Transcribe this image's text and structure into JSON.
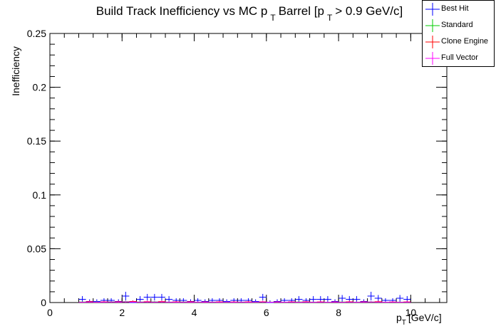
{
  "chart_data": {
    "type": "scatter",
    "title_parts": [
      "Build Track Inefficiency vs MC p",
      "T",
      "Barrel [p",
      "T",
      "> 0.9 GeV/c]"
    ],
    "xlabel_main": "p",
    "xlabel_sub": "T",
    "xlabel_unit": "[GeV/c]",
    "ylabel": "Inefficiency",
    "xlim": [
      0,
      11
    ],
    "ylim": [
      0,
      0.25
    ],
    "xticks": [
      0,
      2,
      4,
      6,
      8,
      10
    ],
    "yticks": [
      0,
      0.05,
      0.1,
      0.15,
      0.2,
      0.25
    ],
    "xtick_labels": [
      "0",
      "2",
      "4",
      "6",
      "8",
      "10"
    ],
    "ytick_labels": [
      "0",
      "0.05",
      "0.1",
      "0.15",
      "0.2",
      "0.25"
    ],
    "bin_width": 0.2,
    "legend_position": "top-right",
    "series": [
      {
        "name": "Best Hit",
        "color": "#0000ff",
        "x": [
          0.9,
          1.1,
          1.3,
          1.5,
          1.7,
          1.9,
          2.1,
          2.3,
          2.5,
          2.7,
          2.9,
          3.1,
          3.3,
          3.5,
          3.7,
          3.9,
          4.1,
          4.3,
          4.5,
          4.7,
          4.9,
          5.1,
          5.3,
          5.5,
          5.7,
          5.9,
          6.1,
          6.3,
          6.5,
          6.7,
          6.9,
          7.1,
          7.3,
          7.5,
          7.7,
          7.9,
          8.1,
          8.3,
          8.5,
          8.7,
          8.9,
          9.1,
          9.3,
          9.5,
          9.7,
          9.9
        ],
        "y": [
          0.003,
          0.001,
          0.001,
          0.002,
          0.002,
          0.001,
          0.006,
          0.0,
          0.003,
          0.005,
          0.005,
          0.005,
          0.003,
          0.002,
          0.002,
          0.001,
          0.002,
          0.001,
          0.002,
          0.002,
          0.001,
          0.002,
          0.002,
          0.002,
          0.001,
          0.005,
          0.0,
          0.001,
          0.002,
          0.002,
          0.003,
          0.002,
          0.003,
          0.003,
          0.003,
          0.001,
          0.004,
          0.003,
          0.003,
          0.001,
          0.006,
          0.004,
          0.002,
          0.002,
          0.004,
          0.003
        ],
        "yerr": [
          0.003,
          0.002,
          0.002,
          0.002,
          0.002,
          0.002,
          0.004,
          0.002,
          0.003,
          0.003,
          0.003,
          0.003,
          0.003,
          0.002,
          0.002,
          0.002,
          0.002,
          0.002,
          0.002,
          0.002,
          0.002,
          0.002,
          0.002,
          0.002,
          0.002,
          0.003,
          0.002,
          0.002,
          0.002,
          0.002,
          0.003,
          0.002,
          0.003,
          0.003,
          0.003,
          0.002,
          0.003,
          0.003,
          0.003,
          0.002,
          0.004,
          0.003,
          0.002,
          0.002,
          0.003,
          0.003
        ]
      },
      {
        "name": "Standard",
        "color": "#00cc00",
        "x": [
          0.9,
          1.3,
          1.7,
          2.1,
          2.5,
          2.9,
          3.3,
          3.7,
          4.1,
          4.5,
          4.9,
          5.3,
          5.7,
          6.1,
          6.5,
          6.9,
          7.3,
          7.7,
          8.1,
          8.5,
          8.9,
          9.3,
          9.7
        ],
        "y": [
          0.0005,
          0.0004,
          0.0006,
          0.0008,
          0.0005,
          0.0006,
          0.0004,
          0.0005,
          0.0003,
          0.0004,
          0.0003,
          0.0004,
          0.0003,
          0.0004,
          0.0003,
          0.0005,
          0.0004,
          0.0003,
          0.0005,
          0.0004,
          0.0005,
          0.0003,
          0.0004
        ],
        "yerr": [
          0.0008,
          0.0008,
          0.0008,
          0.0008,
          0.0008,
          0.0008,
          0.0008,
          0.0008,
          0.0008,
          0.0008,
          0.0008,
          0.0008,
          0.0008,
          0.0008,
          0.0008,
          0.0008,
          0.0008,
          0.0008,
          0.0008,
          0.0008,
          0.0008,
          0.0008,
          0.0008
        ]
      },
      {
        "name": "Clone Engine",
        "color": "#ff0000",
        "x": [
          1.1,
          1.5,
          1.9,
          2.3,
          2.7,
          3.1,
          3.5,
          3.9,
          4.3,
          4.7,
          5.1,
          5.5,
          5.9,
          6.3,
          6.7,
          7.1,
          7.5,
          7.9,
          8.3,
          8.7,
          9.1,
          9.5,
          9.9
        ],
        "y": [
          0.0008,
          0.0006,
          0.0007,
          0.001,
          0.0008,
          0.0009,
          0.0006,
          0.0007,
          0.0005,
          0.0006,
          0.0005,
          0.0006,
          0.0007,
          0.0005,
          0.0006,
          0.0007,
          0.0006,
          0.0005,
          0.0007,
          0.0006,
          0.0008,
          0.0005,
          0.0006
        ],
        "yerr": [
          0.0009,
          0.0009,
          0.0009,
          0.0009,
          0.0009,
          0.0009,
          0.0009,
          0.0009,
          0.0009,
          0.0009,
          0.0009,
          0.0009,
          0.0009,
          0.0009,
          0.0009,
          0.0009,
          0.0009,
          0.0009,
          0.0009,
          0.0009,
          0.0009,
          0.0009,
          0.0009
        ]
      },
      {
        "name": "Full Vector",
        "color": "#ff00ff",
        "x": [
          0.9,
          1.1,
          1.3,
          1.5,
          1.7,
          1.9,
          2.1,
          2.3,
          2.5,
          2.7,
          2.9,
          3.1,
          3.3,
          3.5,
          3.7,
          3.9,
          4.1,
          4.3,
          4.5,
          4.7,
          4.9,
          5.1,
          5.3,
          5.5,
          5.7,
          5.9,
          6.1,
          6.3,
          6.5,
          6.7,
          6.9,
          7.1,
          7.3,
          7.5,
          7.7,
          7.9,
          8.1,
          8.3,
          8.5,
          8.7,
          8.9,
          9.1,
          9.3,
          9.5,
          9.7,
          9.9
        ],
        "y": [
          0.0003,
          0.0004,
          0.0003,
          0.0004,
          0.0005,
          0.0004,
          0.0006,
          0.0005,
          0.0004,
          0.0005,
          0.0004,
          0.0005,
          0.0004,
          0.0003,
          0.0004,
          0.0003,
          0.0004,
          0.0003,
          0.0004,
          0.0003,
          0.0004,
          0.0003,
          0.0004,
          0.0003,
          0.0004,
          0.0005,
          0.0003,
          0.0004,
          0.0003,
          0.0004,
          0.0003,
          0.0004,
          0.0003,
          0.0004,
          0.0003,
          0.0004,
          0.0003,
          0.0004,
          0.0003,
          0.0004,
          0.0005,
          0.0004,
          0.0003,
          0.0004,
          0.0003,
          0.0004
        ],
        "yerr": [
          0.0006,
          0.0006,
          0.0006,
          0.0006,
          0.0006,
          0.0006,
          0.0006,
          0.0006,
          0.0006,
          0.0006,
          0.0006,
          0.0006,
          0.0006,
          0.0006,
          0.0006,
          0.0006,
          0.0006,
          0.0006,
          0.0006,
          0.0006,
          0.0006,
          0.0006,
          0.0006,
          0.0006,
          0.0006,
          0.0006,
          0.0006,
          0.0006,
          0.0006,
          0.0006,
          0.0006,
          0.0006,
          0.0006,
          0.0006,
          0.0006,
          0.0006,
          0.0006,
          0.0006,
          0.0006,
          0.0006,
          0.0006,
          0.0006,
          0.0006,
          0.0006,
          0.0006,
          0.0006
        ]
      }
    ]
  }
}
